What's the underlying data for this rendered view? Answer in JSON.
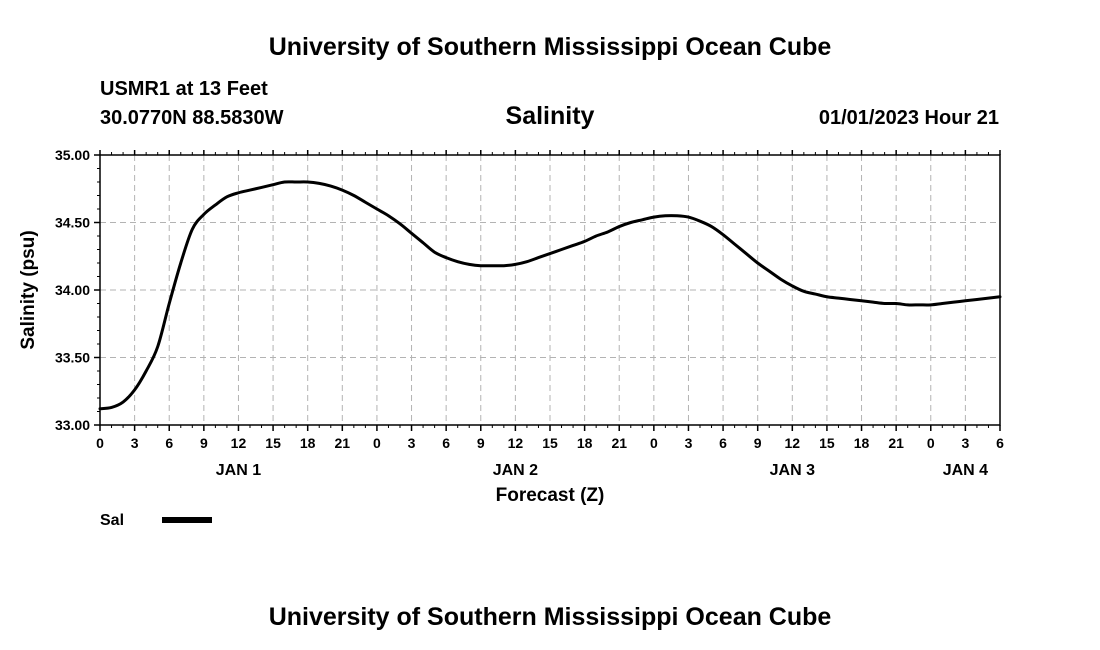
{
  "page": {
    "title_top": "University of Southern Mississippi Ocean Cube",
    "title_bottom": "University of Southern Mississippi Ocean Cube",
    "station": "USMR1 at 13 Feet",
    "location": "30.0770N  88.5830W",
    "datetime": "01/01/2023 Hour 21"
  },
  "colors": {
    "line": "#000000",
    "grid": "#b3b3b3",
    "frame": "#000000"
  },
  "chart_data": {
    "type": "line",
    "title": "Salinity",
    "xlabel": "Forecast (Z)",
    "ylabel": "Salinity (psu)",
    "ylim": [
      33.0,
      35.0
    ],
    "yticks": [
      "33.00",
      "33.50",
      "34.00",
      "34.50",
      "35.00"
    ],
    "xlim": [
      0,
      78
    ],
    "x_tick_step": 3,
    "x_tick_labels": [
      "0",
      "3",
      "6",
      "9",
      "12",
      "15",
      "18",
      "21",
      "0",
      "3",
      "6",
      "9",
      "12",
      "15",
      "18",
      "21",
      "0",
      "3",
      "6",
      "9",
      "12",
      "15",
      "18",
      "21",
      "0",
      "3",
      "6"
    ],
    "day_labels": [
      {
        "hour": 12,
        "label": "JAN 1"
      },
      {
        "hour": 36,
        "label": "JAN 2"
      },
      {
        "hour": 60,
        "label": "JAN 3"
      },
      {
        "hour": 75,
        "label": "JAN 4"
      }
    ],
    "grid": true,
    "legend": {
      "position": "bottom-left",
      "label": "Sal"
    },
    "series": [
      {
        "name": "Sal",
        "x": [
          0,
          1,
          2,
          3,
          4,
          5,
          6,
          7,
          8,
          9,
          10,
          11,
          12,
          13,
          14,
          15,
          16,
          17,
          18,
          19,
          20,
          21,
          22,
          23,
          24,
          25,
          26,
          27,
          28,
          29,
          30,
          31,
          32,
          33,
          34,
          35,
          36,
          37,
          38,
          39,
          40,
          41,
          42,
          43,
          44,
          45,
          46,
          47,
          48,
          49,
          50,
          51,
          52,
          53,
          54,
          55,
          56,
          57,
          58,
          59,
          60,
          61,
          62,
          63,
          64,
          65,
          66,
          67,
          68,
          69,
          70,
          71,
          72,
          73,
          74,
          75,
          76,
          77,
          78
        ],
        "values": [
          33.12,
          33.13,
          33.17,
          33.26,
          33.4,
          33.58,
          33.9,
          34.2,
          34.45,
          34.56,
          34.63,
          34.69,
          34.72,
          34.74,
          34.76,
          34.78,
          34.8,
          34.8,
          34.8,
          34.79,
          34.77,
          34.74,
          34.7,
          34.65,
          34.6,
          34.55,
          34.49,
          34.42,
          34.35,
          34.28,
          34.24,
          34.21,
          34.19,
          34.18,
          34.18,
          34.18,
          34.19,
          34.21,
          34.24,
          34.27,
          34.3,
          34.33,
          34.36,
          34.4,
          34.43,
          34.47,
          34.5,
          34.52,
          34.54,
          34.55,
          34.55,
          34.54,
          34.51,
          34.47,
          34.41,
          34.34,
          34.27,
          34.2,
          34.14,
          34.08,
          34.03,
          33.99,
          33.97,
          33.95,
          33.94,
          33.93,
          33.92,
          33.91,
          33.9,
          33.9,
          33.89,
          33.89,
          33.89,
          33.9,
          33.91,
          33.92,
          33.93,
          33.94,
          33.95
        ]
      }
    ]
  }
}
